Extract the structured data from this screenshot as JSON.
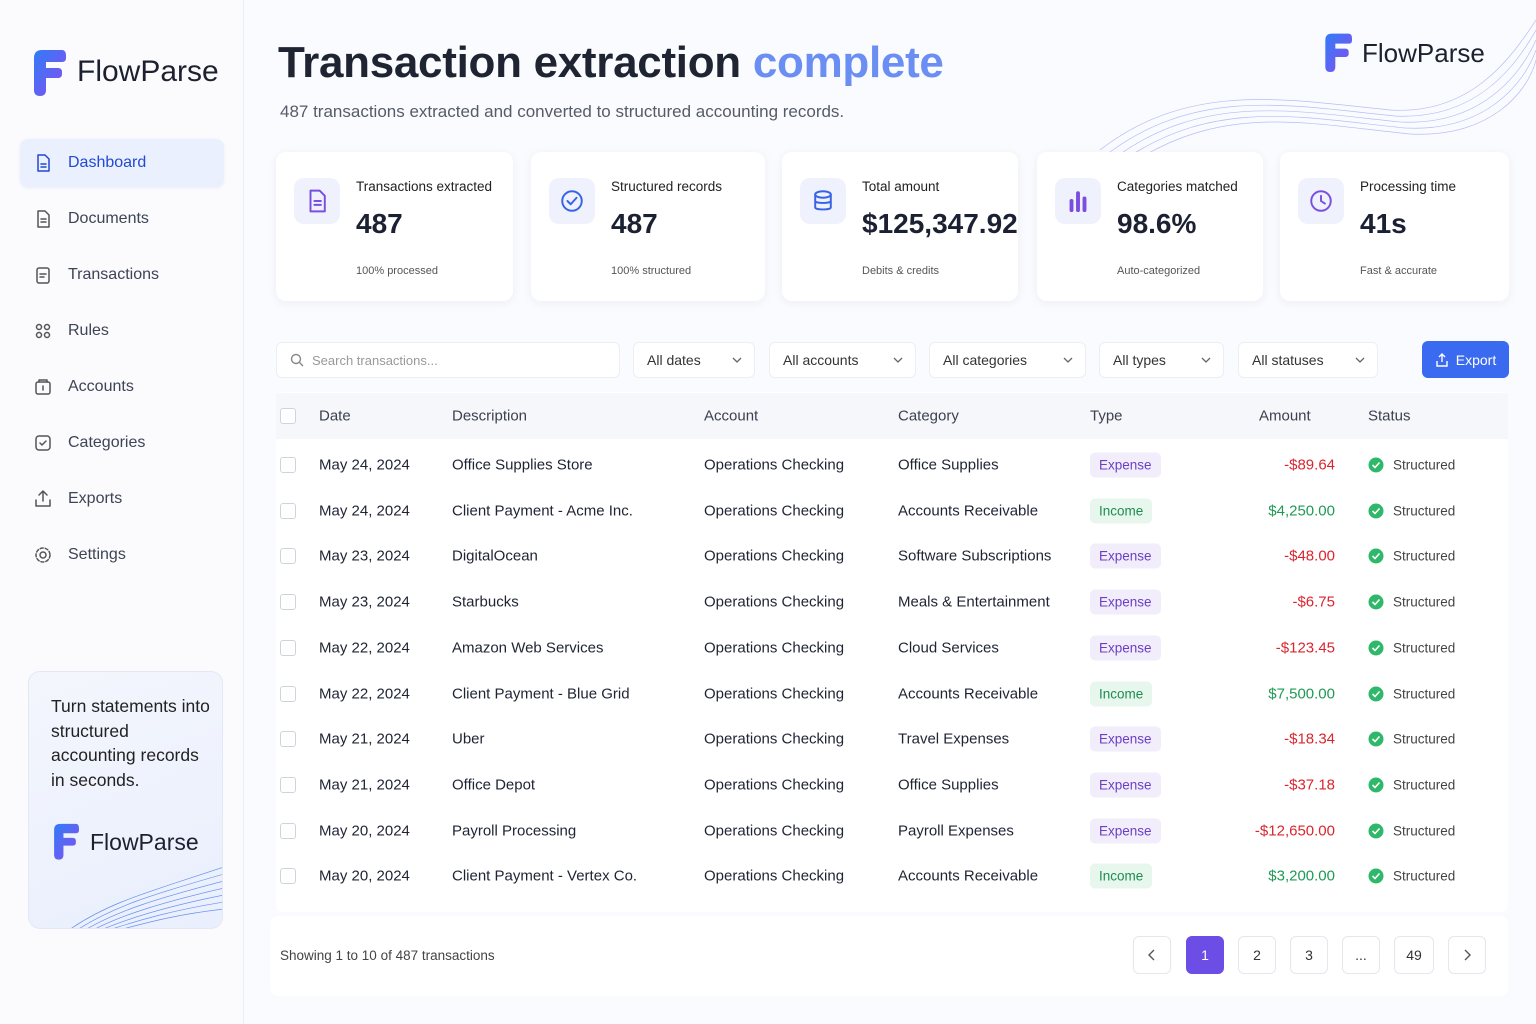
{
  "sidebar": {
    "brand": "FlowParse",
    "nav": [
      "Dashboard",
      "Documents",
      "Transactions",
      "Rules",
      "Accounts",
      "Categories",
      "Exports",
      "Settings"
    ]
  },
  "promo": {
    "text": "Turn statements into structured accounting records in seconds.",
    "brand": "FlowParse"
  },
  "header": {
    "title": "Transaction extraction",
    "title_highlight": "complete",
    "subtitle": "487 transactions extracted and converted to structured accounting records.",
    "brand": "FlowParse"
  },
  "stats": [
    {
      "label": "Transactions extracted",
      "value": "487",
      "note": "100% processed"
    },
    {
      "label": "Structured records",
      "value": "487",
      "note": "100% structured"
    },
    {
      "label": "Total amount",
      "value": "$125,347.92",
      "note": "Debits & credits"
    },
    {
      "label": "Categories matched",
      "value": "98.6%",
      "note": "Auto-categorized"
    },
    {
      "label": "Processing time",
      "value": "41s",
      "note": "Fast & accurate"
    }
  ],
  "filters": {
    "search_placeholder": "Search transactions...",
    "dropdowns": [
      "All dates",
      "All accounts",
      "All categories",
      "All types",
      "All statuses"
    ],
    "export": "Export"
  },
  "table": {
    "columns": [
      "Date",
      "Description",
      "Account",
      "Category",
      "Type",
      "Amount",
      "Status"
    ],
    "rows": [
      [
        "May 24, 2024",
        "Office Supplies Store",
        "Operations Checking",
        "Office Supplies",
        "Expense",
        "-$89.64",
        "Structured"
      ],
      [
        "May 24, 2024",
        "Client Payment - Acme Inc.",
        "Operations Checking",
        "Accounts Receivable",
        "Income",
        "$4,250.00",
        "Structured"
      ],
      [
        "May 23, 2024",
        "DigitalOcean",
        "Operations Checking",
        "Software Subscriptions",
        "Expense",
        "-$48.00",
        "Structured"
      ],
      [
        "May 23, 2024",
        "Starbucks",
        "Operations Checking",
        "Meals & Entertainment",
        "Expense",
        "-$6.75",
        "Structured"
      ],
      [
        "May 22, 2024",
        "Amazon Web Services",
        "Operations Checking",
        "Cloud Services",
        "Expense",
        "-$123.45",
        "Structured"
      ],
      [
        "May 22, 2024",
        "Client Payment - Blue Grid",
        "Operations Checking",
        "Accounts Receivable",
        "Income",
        "$7,500.00",
        "Structured"
      ],
      [
        "May 21, 2024",
        "Uber",
        "Operations Checking",
        "Travel Expenses",
        "Expense",
        "-$18.34",
        "Structured"
      ],
      [
        "May 21, 2024",
        "Office Depot",
        "Operations Checking",
        "Office Supplies",
        "Expense",
        "-$37.18",
        "Structured"
      ],
      [
        "May 20, 2024",
        "Payroll Processing",
        "Operations Checking",
        "Payroll Expenses",
        "Expense",
        "-$12,650.00",
        "Structured"
      ],
      [
        "May 20, 2024",
        "Client Payment - Vertex Co.",
        "Operations Checking",
        "Accounts Receivable",
        "Income",
        "$3,200.00",
        "Structured"
      ]
    ]
  },
  "footer": {
    "showing": "Showing 1 to 10 of 487 transactions",
    "pages": [
      "1",
      "2",
      "3",
      "...",
      "49"
    ]
  }
}
